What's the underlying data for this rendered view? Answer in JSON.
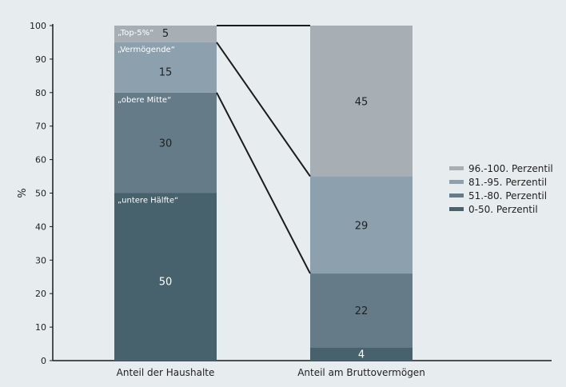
{
  "chart_data": {
    "type": "bar",
    "stacked": true,
    "ylabel": "%",
    "ylim": [
      0,
      100
    ],
    "yticks": [
      0,
      10,
      20,
      30,
      40,
      50,
      60,
      70,
      80,
      90,
      100
    ],
    "categories": [
      "Anteil der Haushalte",
      "Anteil am Bruttovermögen"
    ],
    "series": [
      {
        "name": "0-50. Perzentil",
        "color": "#47616d",
        "values": [
          50,
          4
        ],
        "segment_label": "„untere Hälfte“"
      },
      {
        "name": "51.-80. Perzentil",
        "color": "#657b88",
        "values": [
          30,
          22
        ],
        "segment_label": "„obere Mitte“"
      },
      {
        "name": "81.-95. Perzentil",
        "color": "#8ca1ad",
        "values": [
          15,
          29
        ],
        "segment_label": "„Vermögende“"
      },
      {
        "name": "96.-100. Perzentil",
        "color": "#a7afb5",
        "values": [
          5,
          45
        ],
        "segment_label": "„Top-5%“"
      }
    ],
    "legend_position": "right",
    "connectors": true,
    "grid": false
  }
}
